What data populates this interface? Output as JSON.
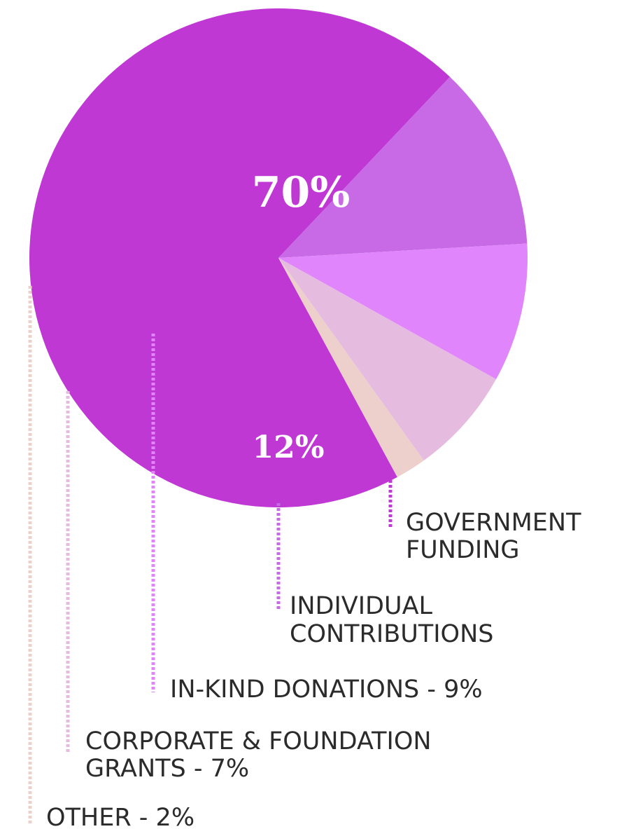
{
  "chart_data": {
    "type": "pie",
    "categories": [
      "GOVERNMENT FUNDING",
      "INDIVIDUAL CONTRIBUTIONS",
      "IN-KIND DONATIONS",
      "CORPORATE & FOUNDATION GRANTS",
      "OTHER"
    ],
    "values": [
      70,
      12,
      9,
      7,
      2
    ],
    "colors": [
      "#c038d4",
      "#c86ae6",
      "#e085fb",
      "#e6bbe0",
      "#edd0cb"
    ],
    "value_labels": [
      "70%",
      "12%",
      "",
      "",
      ""
    ],
    "legend_labels": [
      [
        "GOVERNMENT",
        "FUNDING"
      ],
      [
        "INDIVIDUAL",
        "CONTRIBUTIONS"
      ],
      [
        "IN-KIND DONATIONS - 9%"
      ],
      [
        "CORPORATE & FOUNDATION",
        "GRANTS - 7%"
      ],
      [
        "OTHER - 2%"
      ]
    ],
    "title": "",
    "legend": "below"
  }
}
